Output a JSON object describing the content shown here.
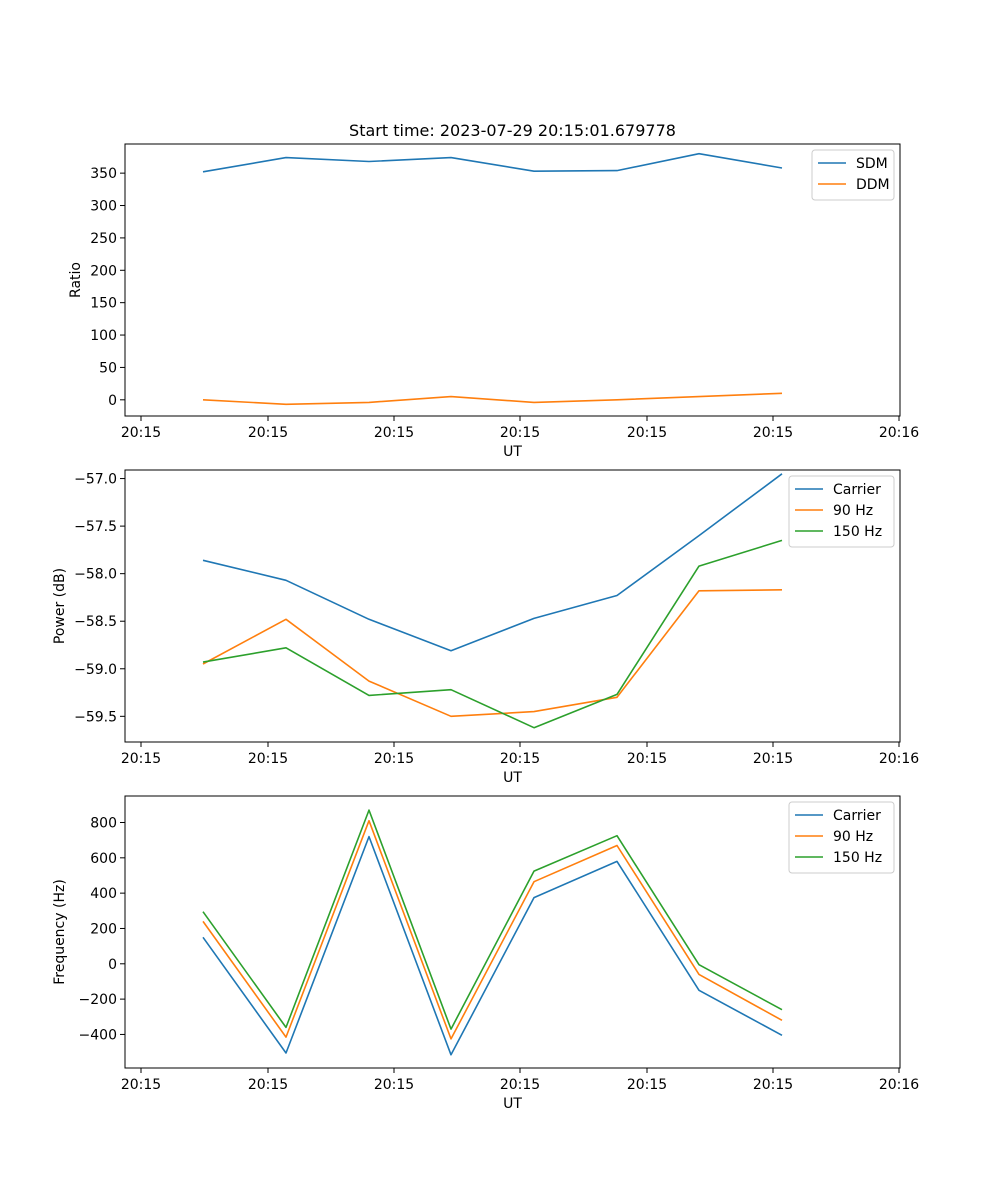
{
  "colors": {
    "c0": "#1f77b4",
    "c1": "#ff7f0e",
    "c2": "#2ca02c"
  },
  "chart_data": [
    {
      "type": "line",
      "title": "Start time: 2023-07-29 20:15:01.679778",
      "xlabel": "UT",
      "ylabel": "Ratio",
      "x_ticks": [
        "20:15",
        "20:15",
        "20:15",
        "20:15",
        "20:15",
        "20:15",
        "20:16"
      ],
      "y_ticks": [
        "0",
        "50",
        "100",
        "150",
        "200",
        "250",
        "300",
        "350"
      ],
      "ylim": [
        -25,
        395
      ],
      "legend": "top-right",
      "series": [
        {
          "name": "SDM",
          "color_key": "c0",
          "values": [
            352,
            374,
            368,
            374,
            353,
            354,
            380,
            358
          ]
        },
        {
          "name": "DDM",
          "color_key": "c1",
          "values": [
            0,
            -7,
            -4,
            5,
            -4,
            0,
            5,
            10
          ]
        }
      ]
    },
    {
      "type": "line",
      "title": "",
      "xlabel": "UT",
      "ylabel": "Power (dB)",
      "x_ticks": [
        "20:15",
        "20:15",
        "20:15",
        "20:15",
        "20:15",
        "20:15",
        "20:16"
      ],
      "y_ticks": [
        "−57.0",
        "−57.5",
        "−58.0",
        "−58.5",
        "−59.0",
        "−59.5"
      ],
      "ylim": [
        -59.77,
        -56.91
      ],
      "legend": "top-right",
      "series": [
        {
          "name": "Carrier",
          "color_key": "c0",
          "values": [
            -57.86,
            -58.07,
            -58.48,
            -58.81,
            -58.47,
            -58.23,
            -57.6,
            -56.95
          ]
        },
        {
          "name": "90 Hz",
          "color_key": "c1",
          "values": [
            -58.95,
            -58.48,
            -59.13,
            -59.5,
            -59.45,
            -59.3,
            -58.18,
            -58.17
          ]
        },
        {
          "name": "150 Hz",
          "color_key": "c2",
          "values": [
            -58.93,
            -58.78,
            -59.28,
            -59.22,
            -59.62,
            -59.27,
            -57.92,
            -57.65
          ]
        }
      ]
    },
    {
      "type": "line",
      "title": "",
      "xlabel": "UT",
      "ylabel": "Frequency (Hz)",
      "x_ticks": [
        "20:15",
        "20:15",
        "20:15",
        "20:15",
        "20:15",
        "20:15",
        "20:16"
      ],
      "y_ticks": [
        "−400",
        "−200",
        "0",
        "200",
        "400",
        "600",
        "800"
      ],
      "ylim": [
        -590,
        950
      ],
      "legend": "top-right",
      "series": [
        {
          "name": "Carrier",
          "color_key": "c0",
          "values": [
            150,
            -505,
            720,
            -515,
            375,
            580,
            -150,
            -405
          ]
        },
        {
          "name": "90 Hz",
          "color_key": "c1",
          "values": [
            240,
            -415,
            810,
            -425,
            465,
            670,
            -60,
            -320
          ]
        },
        {
          "name": "150 Hz",
          "color_key": "c2",
          "values": [
            295,
            -360,
            870,
            -370,
            525,
            725,
            -5,
            -260
          ]
        }
      ]
    }
  ]
}
